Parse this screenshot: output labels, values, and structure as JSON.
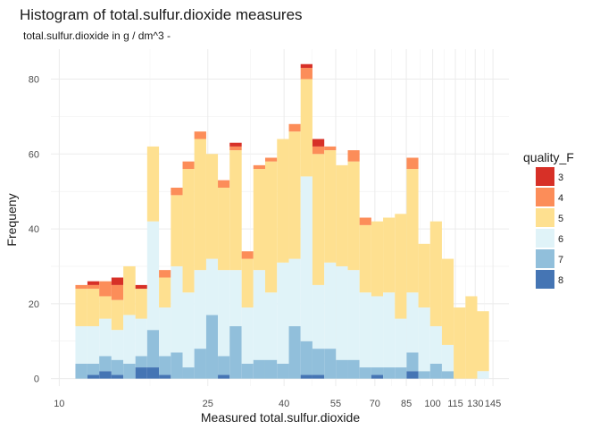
{
  "chart_data": {
    "type": "bar",
    "stacked": true,
    "title": "Histogram of total.sulfur.dioxide measures",
    "subtitle": "total.sulfur.dioxide in g / dm^3 -",
    "xlabel": "Measured total.sulfur.dioxide",
    "ylabel": "Frequeny",
    "x_scale": "log10",
    "xlim": [
      9.5,
      160
    ],
    "ylim": [
      -2,
      88
    ],
    "x_ticks": [
      10,
      25,
      40,
      55,
      70,
      85,
      100,
      115,
      130,
      145
    ],
    "y_ticks": [
      0,
      20,
      40,
      60,
      80
    ],
    "legend_title": "quality_F",
    "legend_position": "right",
    "series_names": [
      "3",
      "4",
      "5",
      "6",
      "7",
      "8"
    ],
    "colors": [
      "#d73027",
      "#fc8d59",
      "#fee090",
      "#e0f3f8",
      "#91bfdb",
      "#4575b4"
    ],
    "bins": [
      {
        "x0": 11.05,
        "x1": 11.9,
        "values": [
          0,
          1,
          10,
          10,
          4,
          0
        ]
      },
      {
        "x0": 11.9,
        "x1": 12.8,
        "values": [
          1,
          1,
          10,
          10,
          3,
          1
        ]
      },
      {
        "x0": 12.8,
        "x1": 13.8,
        "values": [
          0,
          4,
          6,
          10,
          4,
          2
        ]
      },
      {
        "x0": 13.8,
        "x1": 14.85,
        "values": [
          2,
          4,
          8,
          8,
          4,
          1
        ]
      },
      {
        "x0": 14.85,
        "x1": 16.0,
        "values": [
          0,
          0,
          13,
          13,
          4,
          0
        ]
      },
      {
        "x0": 16.0,
        "x1": 17.2,
        "values": [
          1,
          0,
          8,
          10,
          3,
          3
        ]
      },
      {
        "x0": 17.2,
        "x1": 18.5,
        "values": [
          0,
          0,
          20,
          29,
          10,
          3
        ]
      },
      {
        "x0": 18.5,
        "x1": 19.9,
        "values": [
          0,
          2,
          8,
          13,
          5,
          1
        ]
      },
      {
        "x0": 19.9,
        "x1": 21.4,
        "values": [
          0,
          2,
          19,
          23,
          7,
          0
        ]
      },
      {
        "x0": 21.4,
        "x1": 23.0,
        "values": [
          0,
          2,
          33,
          20,
          3,
          0
        ]
      },
      {
        "x0": 23.0,
        "x1": 24.75,
        "values": [
          0,
          2,
          35,
          21,
          8,
          0
        ]
      },
      {
        "x0": 24.75,
        "x1": 26.6,
        "values": [
          0,
          0,
          28,
          15,
          17,
          0
        ]
      },
      {
        "x0": 26.6,
        "x1": 28.6,
        "values": [
          0,
          2,
          22,
          23,
          5,
          1
        ]
      },
      {
        "x0": 28.6,
        "x1": 30.8,
        "values": [
          1,
          1,
          32,
          15,
          14,
          0
        ]
      },
      {
        "x0": 30.8,
        "x1": 33.1,
        "values": [
          0,
          2,
          13,
          15,
          4,
          0
        ]
      },
      {
        "x0": 33.1,
        "x1": 35.6,
        "values": [
          0,
          1,
          27,
          24,
          5,
          0
        ]
      },
      {
        "x0": 35.6,
        "x1": 38.3,
        "values": [
          0,
          1,
          35,
          18,
          5,
          0
        ]
      },
      {
        "x0": 38.3,
        "x1": 41.2,
        "values": [
          0,
          0,
          33,
          27,
          4,
          0
        ]
      },
      {
        "x0": 41.2,
        "x1": 44.3,
        "values": [
          0,
          2,
          34,
          18,
          14,
          0
        ]
      },
      {
        "x0": 44.3,
        "x1": 47.65,
        "values": [
          1,
          3,
          26,
          44,
          9,
          1
        ]
      },
      {
        "x0": 47.65,
        "x1": 51.25,
        "values": [
          2,
          2,
          35,
          17,
          7,
          1
        ]
      },
      {
        "x0": 51.25,
        "x1": 55.1,
        "values": [
          0,
          1,
          30,
          23,
          8,
          0
        ]
      },
      {
        "x0": 55.1,
        "x1": 59.25,
        "values": [
          0,
          0,
          27,
          25,
          5,
          0
        ]
      },
      {
        "x0": 59.25,
        "x1": 63.7,
        "values": [
          0,
          3,
          29,
          24,
          5,
          0
        ]
      },
      {
        "x0": 63.7,
        "x1": 68.5,
        "values": [
          0,
          2,
          18,
          20,
          3,
          0
        ]
      },
      {
        "x0": 68.5,
        "x1": 73.65,
        "values": [
          0,
          0,
          20,
          19,
          2,
          1
        ]
      },
      {
        "x0": 73.65,
        "x1": 79.2,
        "values": [
          0,
          0,
          20,
          20,
          3,
          0
        ]
      },
      {
        "x0": 79.2,
        "x1": 85.15,
        "values": [
          0,
          0,
          28,
          13,
          3,
          0
        ]
      },
      {
        "x0": 85.15,
        "x1": 91.55,
        "values": [
          0,
          3,
          33,
          16,
          5,
          2
        ]
      },
      {
        "x0": 91.55,
        "x1": 98.45,
        "values": [
          0,
          0,
          17,
          17,
          2,
          0
        ]
      },
      {
        "x0": 98.45,
        "x1": 105.85,
        "values": [
          0,
          0,
          28,
          10,
          4,
          0
        ]
      },
      {
        "x0": 105.85,
        "x1": 113.8,
        "values": [
          0,
          0,
          23,
          7,
          2,
          0
        ]
      },
      {
        "x0": 113.8,
        "x1": 122.4,
        "values": [
          0,
          0,
          19,
          0,
          0,
          0
        ]
      },
      {
        "x0": 122.4,
        "x1": 131.6,
        "values": [
          0,
          0,
          22,
          0,
          0,
          0
        ]
      },
      {
        "x0": 131.6,
        "x1": 141.5,
        "values": [
          0,
          0,
          16,
          2,
          0,
          0
        ]
      }
    ]
  }
}
